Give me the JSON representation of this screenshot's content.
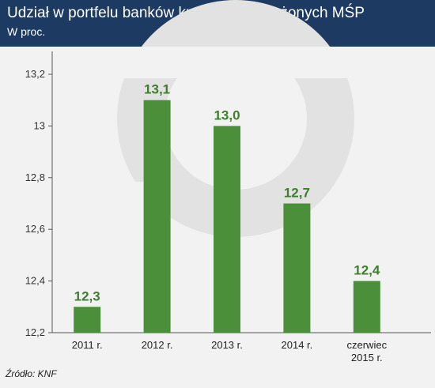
{
  "header": {
    "title": "Udział w portfelu banków kredytów zagrożonych MŚP",
    "subtitle": "W proc."
  },
  "footer": {
    "source": "Źródło: KNF"
  },
  "colors": {
    "header_bg": "#1d3b62",
    "bar": "#4b8f3b",
    "value_label": "#3d7f2d",
    "watermark": "#e2e2e2"
  },
  "chart_data": {
    "type": "bar",
    "categories": [
      [
        "2011 r."
      ],
      [
        "2012 r."
      ],
      [
        "2013 r."
      ],
      [
        "2014 r."
      ],
      [
        "czerwiec",
        "2015 r."
      ]
    ],
    "values": [
      12.3,
      13.1,
      13.0,
      12.7,
      12.4
    ],
    "value_labels": [
      "12,3",
      "13,1",
      "13,0",
      "12,7",
      "12,4"
    ],
    "y_ticks": [
      12.2,
      12.4,
      12.6,
      12.8,
      13.0,
      13.2
    ],
    "y_tick_labels": [
      "12,2",
      "12,4",
      "12,6",
      "12,8",
      "13",
      "13,2"
    ],
    "ylim": [
      12.2,
      13.3
    ],
    "xlabel": "",
    "ylabel": "",
    "grid": false,
    "legend": "none"
  }
}
